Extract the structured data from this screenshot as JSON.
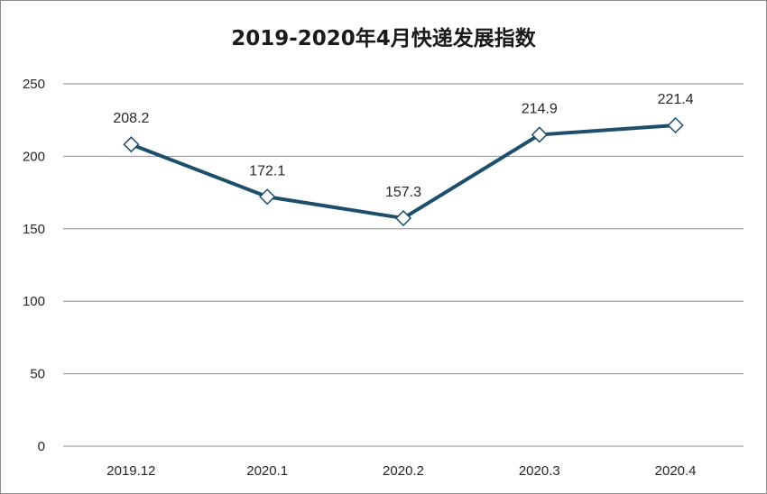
{
  "chart_data": {
    "type": "line",
    "title": "2019-2020年4月快递发展指数",
    "categories": [
      "2019.12",
      "2020.1",
      "2020.2",
      "2020.3",
      "2020.4"
    ],
    "series": [
      {
        "values": [
          208.2,
          172.1,
          157.3,
          214.9,
          221.4
        ]
      }
    ],
    "data_labels": [
      "208.2",
      "172.1",
      "157.3",
      "214.9",
      "221.4"
    ],
    "y_ticks": [
      "0",
      "50",
      "100",
      "150",
      "200",
      "250"
    ],
    "ylim": [
      0,
      250
    ],
    "grid": true,
    "legend": "none",
    "xlabel": "",
    "ylabel": "",
    "colors": {
      "line": "#1d4e6b",
      "marker_fill": "#ffffff",
      "grid": "#8c8c8c"
    }
  }
}
